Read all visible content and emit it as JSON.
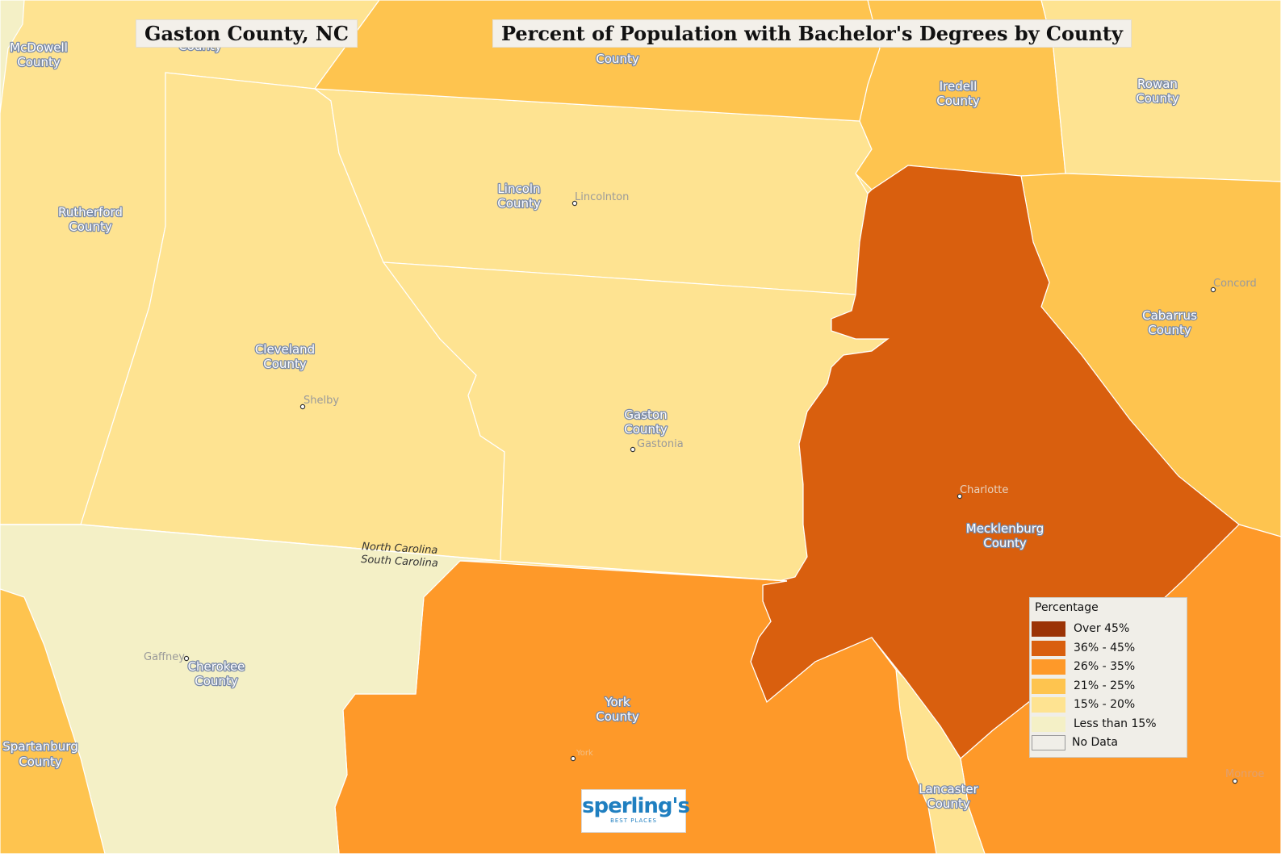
{
  "map": {
    "title_left": "Gaston County, NC",
    "title_right": "Percent of Population with Bachelor's Degrees by County",
    "colors": {
      "over45": "#9b3306",
      "c36_45": "#d95f0e",
      "c26_35": "#fe9929",
      "c21_25": "#fec44f",
      "c15_20": "#fee391",
      "lt15": "#f4f0c6",
      "nodata": "#f0eee8",
      "border": "#ffffff"
    },
    "counties": [
      {
        "name_l1": "McDowell",
        "name_l2": "County",
        "category": "Less than 15%"
      },
      {
        "name_l1": "Rutherford",
        "name_l2": "County",
        "category": "15% - 20%"
      },
      {
        "name_l1": "Cleveland",
        "name_l2": "County",
        "category": "15% - 20%"
      },
      {
        "name_l1": "Lincoln",
        "name_l2": "County",
        "category": "15% - 20%"
      },
      {
        "name_l1": "Gaston",
        "name_l2": "County",
        "category": "15% - 20%"
      },
      {
        "name_l1": "Iredell",
        "name_l2": "County",
        "category": "21% - 25%"
      },
      {
        "name_l1": "Rowan",
        "name_l2": "County",
        "category": "15% - 20%"
      },
      {
        "name_l1": "Cabarrus",
        "name_l2": "County",
        "category": "21% - 25%"
      },
      {
        "name_l1": "Mecklenburg",
        "name_l2": "County",
        "category": "36% - 45%"
      },
      {
        "name_l1": "York",
        "name_l2": "County",
        "category": "26% - 35%"
      },
      {
        "name_l1": "Cherokee",
        "name_l2": "County",
        "category": "Less than 15%"
      },
      {
        "name_l1": "Spartanburg",
        "name_l2": "County",
        "category": "21% - 25%"
      },
      {
        "name_l1": "Lancaster",
        "name_l2": "County",
        "category": "15% - 20%"
      },
      {
        "name_l1": "",
        "name_l2": "County",
        "category": "21% - 25%"
      },
      {
        "name_l1": "",
        "name_l2": "County",
        "category": "15% - 20%"
      }
    ],
    "cities": [
      "Lincolnton",
      "Shelby",
      "Gastonia",
      "Charlotte",
      "Concord",
      "Gaffney",
      "York",
      "Monroe"
    ],
    "state_labels": [
      "North Carolina",
      "South Carolina"
    ],
    "legend": {
      "title": "Percentage",
      "items": [
        {
          "label": "Over 45%",
          "color": "#9b3306"
        },
        {
          "label": "36% - 45%",
          "color": "#d95f0e"
        },
        {
          "label": "26% - 35%",
          "color": "#fe9929"
        },
        {
          "label": "21% - 25%",
          "color": "#fec44f"
        },
        {
          "label": "15% - 20%",
          "color": "#fee391"
        },
        {
          "label": "Less than 15%",
          "color": "#f4f0c6"
        },
        {
          "label": "No Data",
          "color": "#f0eee8"
        }
      ]
    },
    "logo": {
      "word": "sperling's",
      "sub": "BEST PLACES"
    }
  }
}
